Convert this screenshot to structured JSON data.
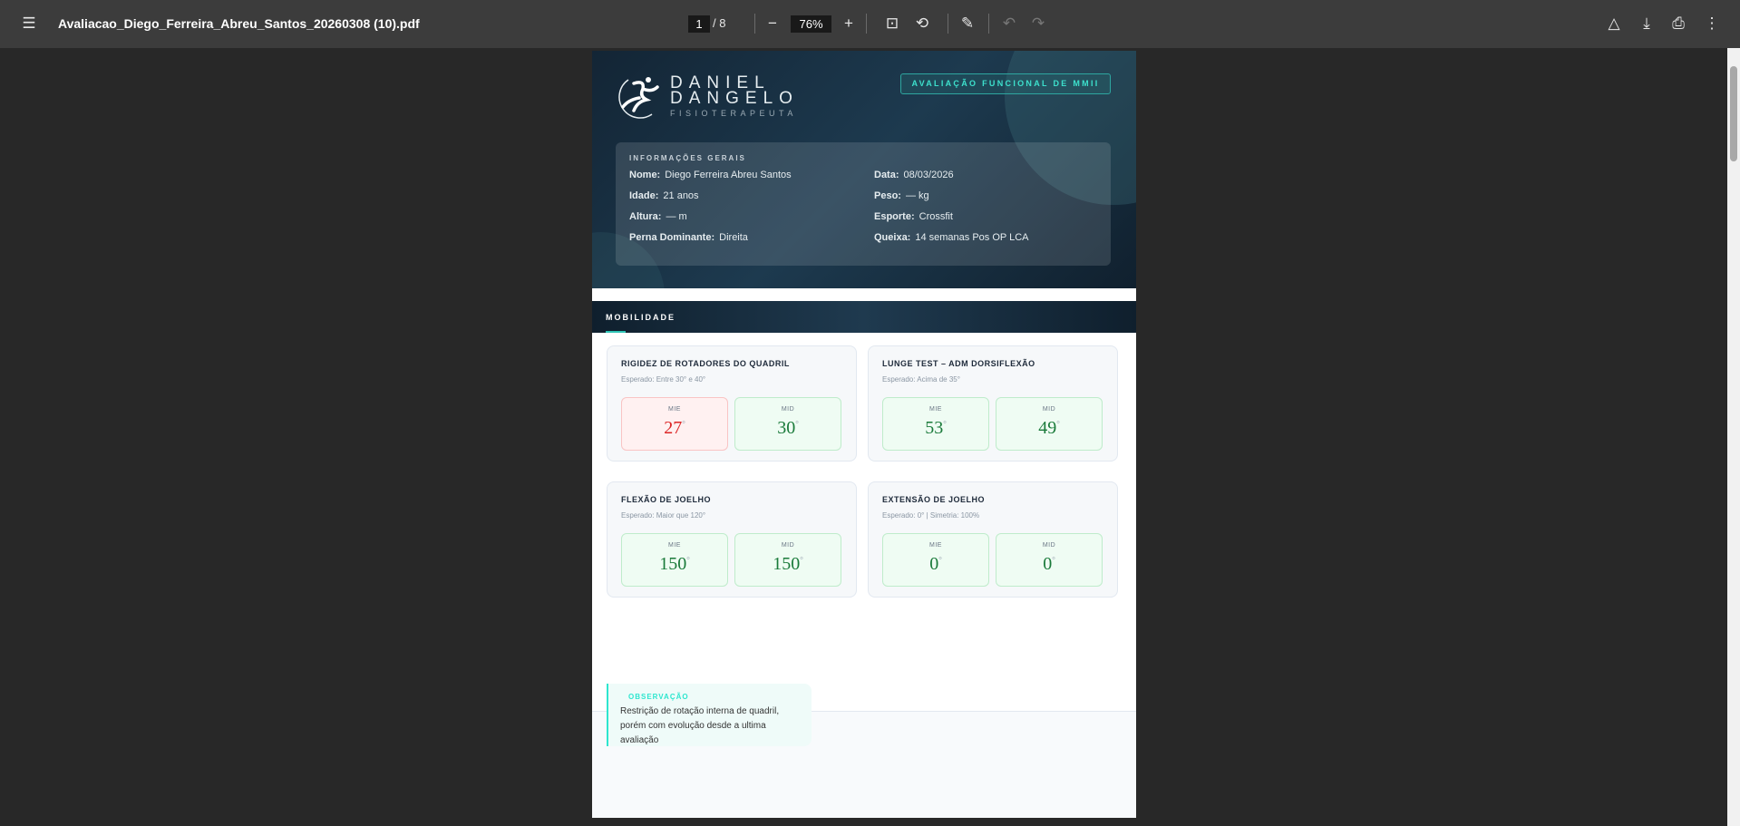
{
  "toolbar": {
    "filename": "Avaliacao_Diego_Ferreira_Abreu_Santos_20260308 (10).pdf",
    "page_current": "1",
    "page_total": "8",
    "zoom": "76%"
  },
  "header": {
    "logo_line1": "DANIEL",
    "logo_line2": "DANGELO",
    "logo_sub": "FISIOTERAPEUTA",
    "badge": "AVALIAÇÃO FUNCIONAL DE MMII"
  },
  "info": {
    "heading": "INFORMAÇÕES GERAIS",
    "fields": [
      {
        "label": "Nome:",
        "value": "Diego Ferreira Abreu Santos"
      },
      {
        "label": "Data:",
        "value": "08/03/2026"
      },
      {
        "label": "Idade:",
        "value": "21 anos"
      },
      {
        "label": "Peso:",
        "value": "— kg"
      },
      {
        "label": "Altura:",
        "value": "— m"
      },
      {
        "label": "Esporte:",
        "value": "Crossfit"
      },
      {
        "label": "Perna Dominante:",
        "value": "Direita"
      },
      {
        "label": "Queixa:",
        "value": "14 semanas Pos OP LCA"
      }
    ]
  },
  "section": {
    "title": "MOBILIDADE"
  },
  "cards": [
    {
      "title": "RIGIDEZ DE ROTADORES DO QUADRIL",
      "expected": "Esperado: Entre 30° e 40°",
      "left": {
        "label": "MIE",
        "value": "27",
        "status": "bad"
      },
      "right": {
        "label": "MID",
        "value": "30",
        "status": "ok"
      }
    },
    {
      "title": "LUNGE TEST – ADM DORSIFLEXÃO",
      "expected": "Esperado: Acima de 35°",
      "left": {
        "label": "MIE",
        "value": "53",
        "status": "ok"
      },
      "right": {
        "label": "MID",
        "value": "49",
        "status": "ok"
      }
    },
    {
      "title": "FLEXÃO DE JOELHO",
      "expected": "Esperado: Maior que 120°",
      "left": {
        "label": "MIE",
        "value": "150",
        "status": "ok"
      },
      "right": {
        "label": "MID",
        "value": "150",
        "status": "ok"
      }
    },
    {
      "title": "EXTENSÃO DE JOELHO",
      "expected": "Esperado: 0° | Simetria: 100%",
      "left": {
        "label": "MIE",
        "value": "0",
        "status": "ok"
      },
      "right": {
        "label": "MID",
        "value": "0",
        "status": "ok"
      }
    }
  ],
  "degree_symbol": "°",
  "observation": {
    "heading": "OBSERVAÇÃO",
    "text": "Restrição de rotação interna de quadril, porém com evolução desde a ultima avaliação"
  },
  "colors": {
    "ok": "#1a7a3a",
    "bad": "#dc2626",
    "accent": "#2ee6cf"
  }
}
